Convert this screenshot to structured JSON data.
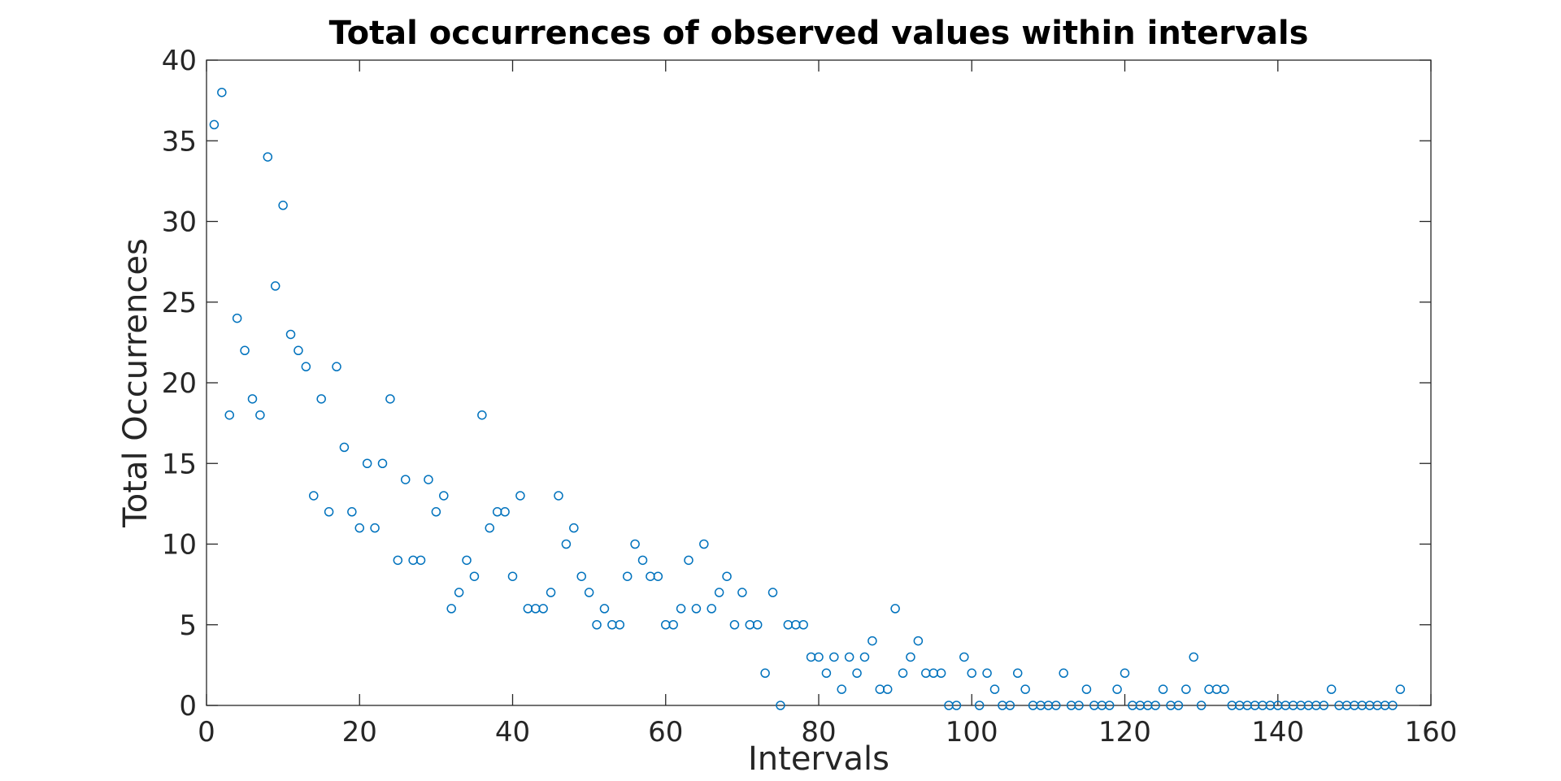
{
  "chart_data": {
    "type": "scatter",
    "title": "Total occurrences of observed values within intervals",
    "xlabel": "Intervals",
    "ylabel": "Total Occurrences",
    "xlim": [
      0,
      160
    ],
    "ylim": [
      0,
      40
    ],
    "xticks": [
      0,
      20,
      40,
      60,
      80,
      100,
      120,
      140,
      160
    ],
    "yticks": [
      0,
      5,
      10,
      15,
      20,
      25,
      30,
      35,
      40
    ],
    "grid": false,
    "legend": "none",
    "marker": "circle",
    "color": "#0072BD",
    "series": [
      {
        "x": [
          1,
          2,
          3,
          4,
          5,
          6,
          7,
          8,
          9,
          10,
          11,
          12,
          13,
          14,
          15,
          16,
          17,
          18,
          19,
          20,
          21,
          22,
          23,
          24,
          25,
          26,
          27,
          28,
          29,
          30,
          31,
          32,
          33,
          34,
          35,
          36,
          37,
          38,
          39,
          40,
          41,
          42,
          43,
          44,
          45,
          46,
          47,
          48,
          49,
          50,
          51,
          52,
          53,
          54,
          55,
          56,
          57,
          58,
          59,
          60,
          61,
          62,
          63,
          64,
          65,
          66,
          67,
          68,
          69,
          70,
          71,
          72,
          73,
          74,
          75,
          76,
          77,
          78,
          79,
          80,
          81,
          82,
          83,
          84,
          85,
          86,
          87,
          88,
          89,
          90,
          91,
          92,
          93,
          94,
          95,
          96,
          97,
          98,
          99,
          100,
          101,
          102,
          103,
          104,
          105,
          106,
          107,
          108,
          109,
          110,
          111,
          112,
          113,
          114,
          115,
          116,
          117,
          118,
          119,
          120,
          121,
          122,
          123,
          124,
          125,
          126,
          127,
          128,
          129,
          130,
          131,
          132,
          133,
          134,
          135,
          136,
          137,
          138,
          139,
          140,
          141,
          142,
          143,
          144,
          145,
          146,
          147,
          148,
          149,
          150,
          151,
          152,
          153,
          154,
          155,
          156
        ],
        "y": [
          36,
          38,
          18,
          24,
          22,
          19,
          18,
          34,
          26,
          31,
          23,
          22,
          21,
          13,
          19,
          12,
          21,
          16,
          12,
          11,
          15,
          11,
          15,
          19,
          9,
          14,
          9,
          9,
          14,
          12,
          13,
          6,
          7,
          9,
          8,
          18,
          11,
          12,
          12,
          8,
          13,
          6,
          6,
          6,
          7,
          13,
          10,
          11,
          8,
          7,
          5,
          6,
          5,
          5,
          8,
          10,
          9,
          8,
          8,
          5,
          5,
          6,
          9,
          6,
          10,
          6,
          7,
          8,
          5,
          7,
          5,
          5,
          2,
          7,
          0,
          5,
          5,
          5,
          3,
          3,
          2,
          3,
          1,
          3,
          2,
          3,
          4,
          1,
          1,
          6,
          2,
          3,
          4,
          2,
          2,
          2,
          0,
          0,
          3,
          2,
          0,
          2,
          1,
          0,
          0,
          2,
          1,
          0,
          0,
          0,
          0,
          2,
          0,
          0,
          1,
          0,
          0,
          0,
          1,
          2,
          0,
          0,
          0,
          0,
          1,
          0,
          0,
          1,
          3,
          0,
          1,
          1,
          1,
          0,
          0,
          0,
          0,
          0,
          0,
          0,
          0,
          0,
          0,
          0,
          0,
          0,
          1,
          0,
          0,
          0,
          0,
          0,
          0,
          0,
          0,
          1
        ]
      }
    ]
  }
}
